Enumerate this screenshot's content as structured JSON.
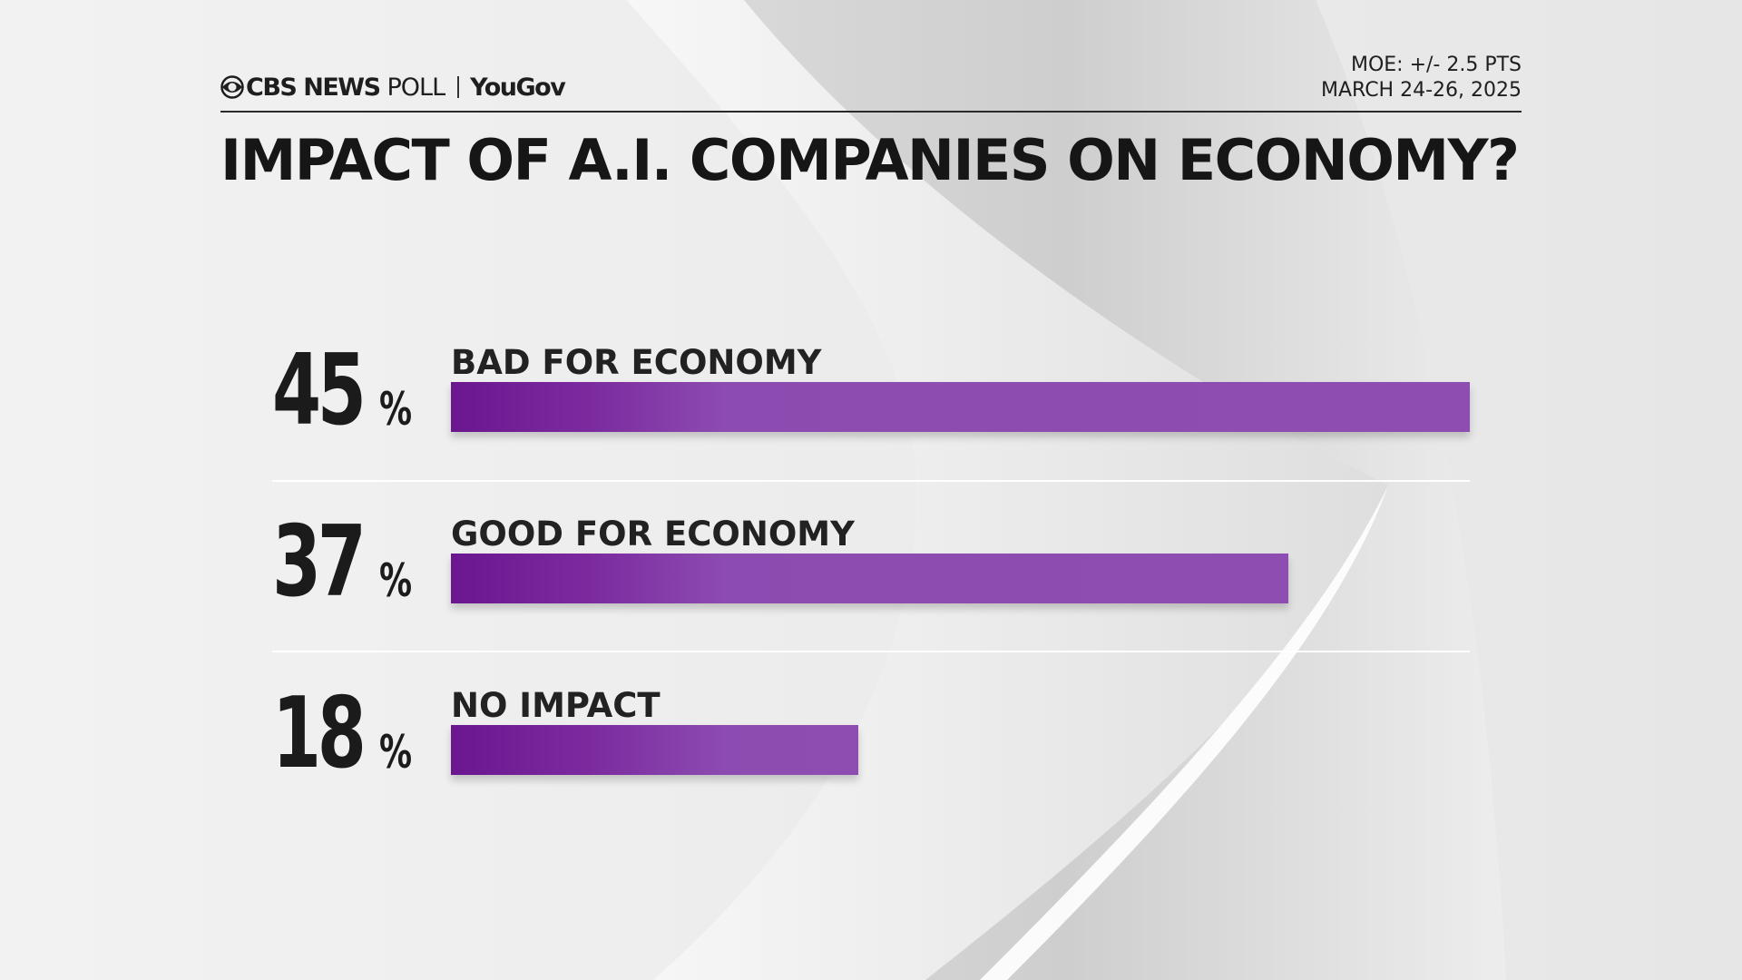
{
  "header": {
    "brand": "CBS NEWS",
    "brand_suffix": "POLL",
    "partner": "YouGov",
    "moe": "MOE: +/- 2.5 PTS",
    "dates": "MARCH 24-26, 2025"
  },
  "colors": {
    "bar": "#8e4eb1",
    "bar_dark": "#6a1790",
    "text": "#1b1b1b",
    "background": "#ebebeb"
  },
  "chart_data": {
    "type": "bar",
    "orientation": "horizontal",
    "title": "IMPACT OF A.I. COMPANIES ON ECONOMY?",
    "categories": [
      "BAD FOR ECONOMY",
      "GOOD FOR ECONOMY",
      "NO IMPACT"
    ],
    "values": [
      45,
      37,
      18
    ],
    "value_labels": [
      "45",
      "37",
      "18"
    ],
    "unit_label": "%",
    "xlim": [
      0,
      45
    ],
    "grid": false,
    "legend": "none"
  }
}
